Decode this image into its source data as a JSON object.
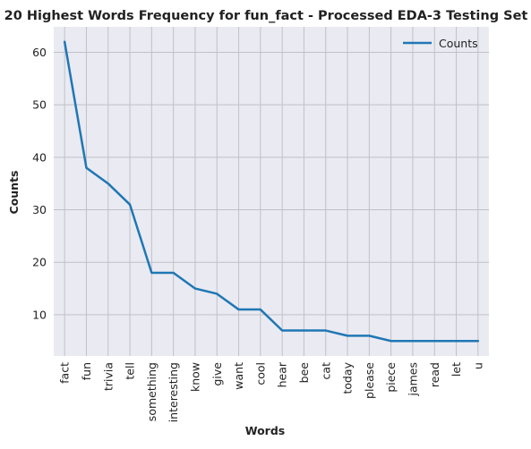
{
  "chart_data": {
    "type": "line",
    "title": "20 Highest Words Frequency for fun_fact - Processed EDA-3 Testing Set",
    "xlabel": "Words",
    "ylabel": "Counts",
    "categories": [
      "fact",
      "fun",
      "trivia",
      "tell",
      "something",
      "interesting",
      "know",
      "give",
      "want",
      "cool",
      "hear",
      "bee",
      "cat",
      "today",
      "please",
      "piece",
      "james",
      "read",
      "let",
      "u"
    ],
    "series": [
      {
        "name": "Counts",
        "values": [
          62,
          38,
          35,
          31,
          18,
          18,
          15,
          14,
          11,
          11,
          7,
          7,
          7,
          6,
          6,
          5,
          5,
          5,
          5,
          5
        ],
        "color": "#1f77b4"
      }
    ],
    "ylim": [
      2.15,
      64.85
    ],
    "yticks": [
      10,
      20,
      30,
      40,
      50,
      60
    ],
    "grid": true,
    "legend_position": "top-right",
    "background_color": "#eaeaf2",
    "grid_color": "#c0c0c6"
  }
}
